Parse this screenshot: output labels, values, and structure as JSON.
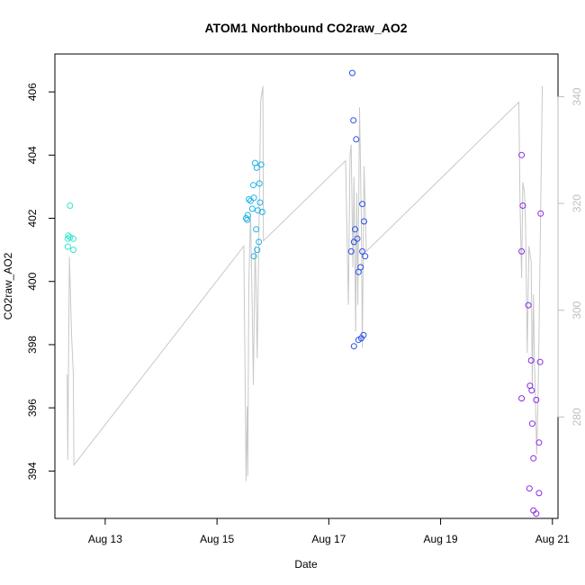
{
  "chart_data": {
    "type": "scatter",
    "title": "ATOM1 Northbound CO2raw_AO2",
    "xlabel": "Date",
    "ylabel": "CO2raw_AO2",
    "x_ticks": [
      {
        "label": "Aug 13",
        "day": 13
      },
      {
        "label": "Aug 15",
        "day": 15
      },
      {
        "label": "Aug 17",
        "day": 17
      },
      {
        "label": "Aug 19",
        "day": 19
      },
      {
        "label": "Aug 21",
        "day": 21
      }
    ],
    "xlim_days": [
      12.1,
      21.1
    ],
    "ylim": [
      392.5,
      407.2
    ],
    "y_ticks": [
      394,
      396,
      398,
      400,
      402,
      404,
      406
    ],
    "y2lim": [
      261,
      348
    ],
    "y2_ticks": [
      280,
      300,
      320,
      340
    ],
    "y2_color": "#bebebe",
    "line_color": "#c8c8c8",
    "scatter_series": [
      {
        "color": "#33e6cc",
        "points": [
          [
            12.33,
            401.35
          ],
          [
            12.34,
            401.45
          ],
          [
            12.33,
            401.1
          ],
          [
            12.37,
            401.4
          ],
          [
            12.43,
            401.35
          ],
          [
            12.37,
            402.4
          ],
          [
            12.43,
            401.0
          ]
        ]
      },
      {
        "color": "#1fb3e6",
        "points": [
          [
            15.52,
            402.0
          ],
          [
            15.55,
            402.1
          ],
          [
            15.57,
            402.6
          ],
          [
            15.6,
            402.55
          ],
          [
            15.63,
            402.3
          ],
          [
            15.66,
            402.65
          ],
          [
            15.65,
            403.05
          ],
          [
            15.68,
            403.75
          ],
          [
            15.71,
            403.6
          ],
          [
            15.76,
            403.1
          ],
          [
            15.79,
            403.7
          ],
          [
            15.73,
            402.25
          ],
          [
            15.77,
            402.5
          ],
          [
            15.81,
            402.2
          ],
          [
            15.7,
            401.65
          ],
          [
            15.75,
            401.25
          ],
          [
            15.72,
            401.0
          ],
          [
            15.66,
            400.8
          ],
          [
            15.54,
            401.95
          ]
        ]
      },
      {
        "color": "#2a4fe8",
        "points": [
          [
            17.42,
            406.6
          ],
          [
            17.44,
            405.1
          ],
          [
            17.49,
            404.5
          ],
          [
            17.45,
            401.25
          ],
          [
            17.47,
            401.65
          ],
          [
            17.51,
            401.35
          ],
          [
            17.4,
            400.95
          ],
          [
            17.6,
            402.45
          ],
          [
            17.63,
            401.9
          ],
          [
            17.6,
            400.95
          ],
          [
            17.65,
            400.8
          ],
          [
            17.57,
            400.45
          ],
          [
            17.53,
            400.3
          ],
          [
            17.45,
            397.95
          ],
          [
            17.53,
            398.15
          ],
          [
            17.58,
            398.2
          ],
          [
            17.62,
            398.3
          ]
        ]
      },
      {
        "color": "#8a2be2",
        "points": [
          [
            20.45,
            404.0
          ],
          [
            20.47,
            402.4
          ],
          [
            20.45,
            400.95
          ],
          [
            20.57,
            399.25
          ],
          [
            20.45,
            396.3
          ],
          [
            20.62,
            397.5
          ],
          [
            20.6,
            396.7
          ],
          [
            20.63,
            396.55
          ],
          [
            20.71,
            396.25
          ],
          [
            20.78,
            397.45
          ],
          [
            20.64,
            395.5
          ],
          [
            20.76,
            394.9
          ],
          [
            20.66,
            394.4
          ],
          [
            20.59,
            393.45
          ],
          [
            20.76,
            393.3
          ],
          [
            20.66,
            392.75
          ],
          [
            20.71,
            392.65
          ],
          [
            20.79,
            402.15
          ]
        ]
      }
    ],
    "line_series_y2": [
      [
        12.32,
        288
      ],
      [
        12.33,
        272
      ],
      [
        12.36,
        310
      ],
      [
        12.4,
        295
      ],
      [
        12.43,
        288
      ],
      [
        12.44,
        271
      ],
      [
        15.48,
        312
      ],
      [
        15.49,
        300
      ],
      [
        15.5,
        290
      ],
      [
        15.52,
        268
      ],
      [
        15.54,
        282
      ],
      [
        15.55,
        269
      ],
      [
        15.57,
        305
      ],
      [
        15.6,
        318
      ],
      [
        15.63,
        300
      ],
      [
        15.65,
        286
      ],
      [
        15.68,
        312
      ],
      [
        15.7,
        304
      ],
      [
        15.72,
        291
      ],
      [
        15.76,
        322
      ],
      [
        15.78,
        339
      ],
      [
        15.82,
        342
      ],
      [
        15.83,
        313
      ],
      [
        17.3,
        328
      ],
      [
        17.35,
        301
      ],
      [
        17.38,
        329
      ],
      [
        17.4,
        331
      ],
      [
        17.43,
        308
      ],
      [
        17.45,
        325
      ],
      [
        17.48,
        296
      ],
      [
        17.5,
        322
      ],
      [
        17.52,
        301
      ],
      [
        17.55,
        338
      ],
      [
        17.58,
        318
      ],
      [
        17.6,
        293
      ],
      [
        17.63,
        327
      ],
      [
        17.67,
        311
      ],
      [
        20.4,
        339
      ],
      [
        20.42,
        320
      ],
      [
        20.45,
        306
      ],
      [
        20.47,
        324
      ],
      [
        20.5,
        322
      ],
      [
        20.52,
        316
      ],
      [
        20.55,
        292
      ],
      [
        20.58,
        312
      ],
      [
        20.62,
        309
      ],
      [
        20.64,
        286
      ],
      [
        20.66,
        303
      ],
      [
        20.68,
        290
      ],
      [
        20.72,
        273
      ],
      [
        20.75,
        288
      ],
      [
        20.8,
        327
      ],
      [
        20.82,
        342
      ]
    ]
  }
}
